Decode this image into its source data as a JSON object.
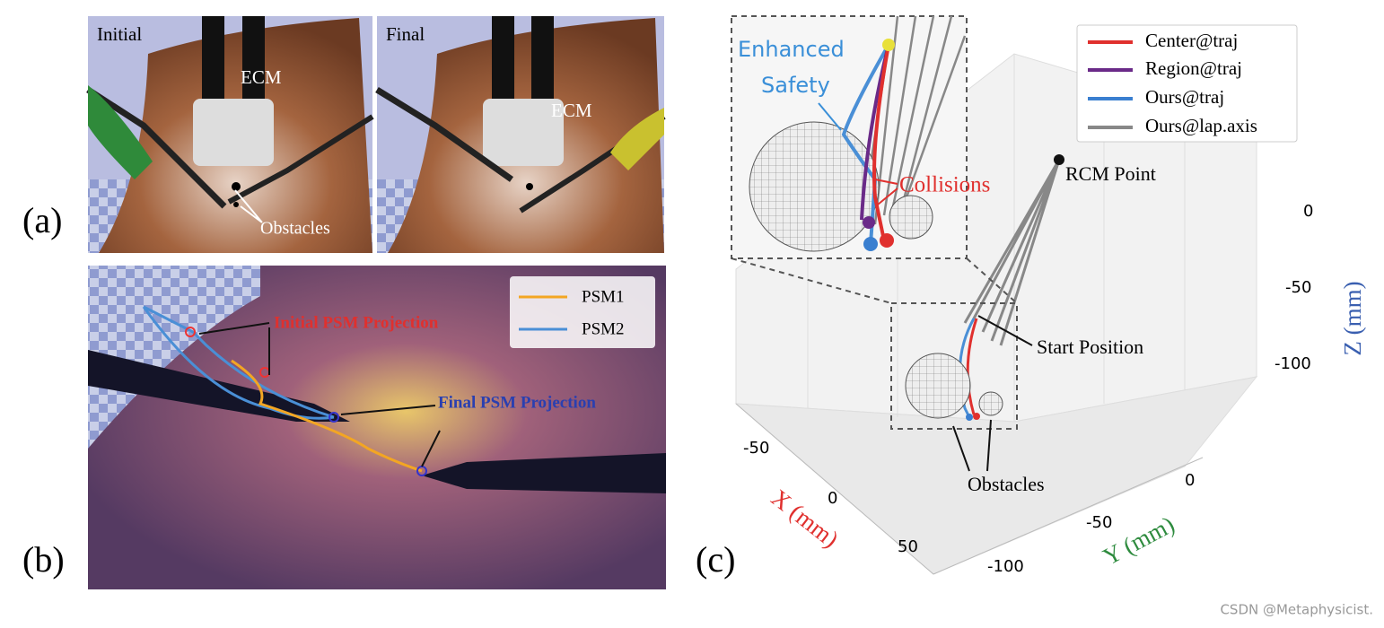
{
  "panel_a": {
    "label": "(a)",
    "left_title": "Initial",
    "right_title": "Final",
    "ecm_left": "ECM",
    "ecm_right": "ECM",
    "obstacles": "Obstacles"
  },
  "panel_b": {
    "label": "(b)",
    "legend": [
      "PSM1",
      "PSM2"
    ],
    "initial_annotation": "Initial PSM Projection",
    "final_annotation": "Final PSM Projection"
  },
  "panel_c": {
    "label": "(c)",
    "legend": [
      "Center@traj",
      "Region@traj",
      "Ours@traj",
      "Ours@lap.axis"
    ],
    "safety_line1": "Enhanced",
    "safety_line2": "Safety",
    "collisions": "Collisions",
    "rcm": "RCM Point",
    "start": "Start Position",
    "obstacles": "Obstacles",
    "x_label": "X (mm)",
    "y_label": "Y (mm)",
    "z_label": "Z (mm)",
    "x_ticks": [
      "-50",
      "0",
      "50"
    ],
    "y_ticks": [
      "0",
      "-50",
      "-100"
    ],
    "z_ticks": [
      "0",
      "-50",
      "-100"
    ]
  },
  "watermark": "CSDN @Metaphysicist."
}
